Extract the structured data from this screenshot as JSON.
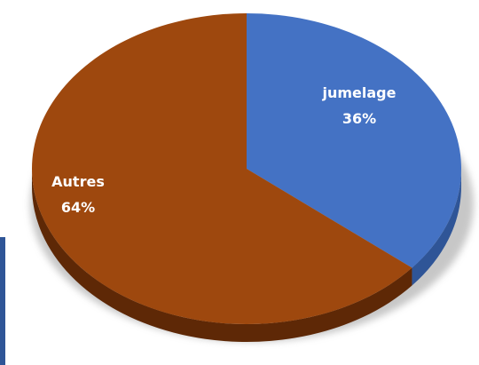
{
  "chart_data": {
    "type": "pie",
    "title": "",
    "series": [
      {
        "label": "jumelage",
        "pct_label": "36%",
        "value": 36,
        "color": "#4472C4",
        "side_color": "#2F5597"
      },
      {
        "label": "Autres",
        "pct_label": "64%",
        "value": 64,
        "color": "#9E480E",
        "side_color": "#5E2806"
      }
    ]
  },
  "colors": {
    "background": "#FFFFFF",
    "left_accent_bar": "#2F5597"
  }
}
